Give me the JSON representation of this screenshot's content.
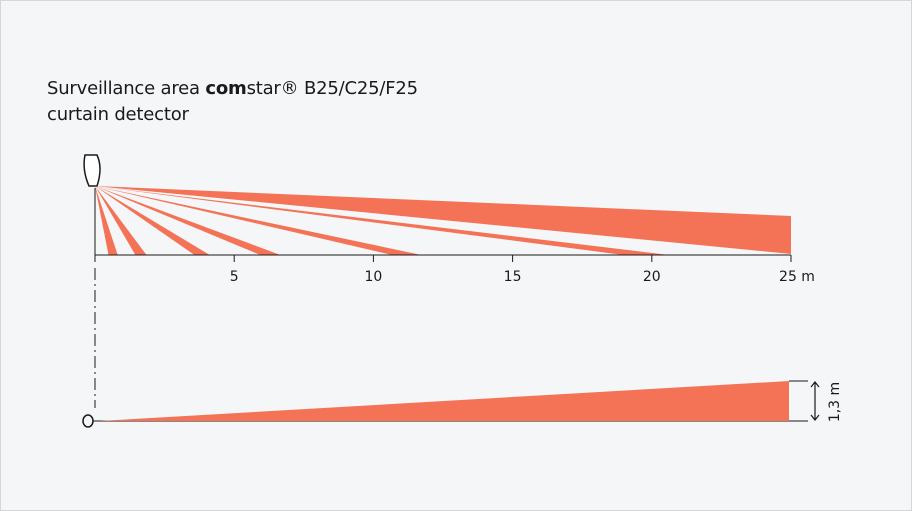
{
  "caption": {
    "prefix": "Surveillance area ",
    "brand_bold": "com",
    "brand_rest": "star®",
    "models": " B25/C25/F25",
    "line2": "curtain detector"
  },
  "top_view": {
    "axis_unit": "m",
    "axis_max": 25,
    "ticks": [
      {
        "value": 5,
        "label": "5"
      },
      {
        "value": 10,
        "label": "10"
      },
      {
        "value": 15,
        "label": "15"
      },
      {
        "value": 20,
        "label": "20"
      },
      {
        "value": 25,
        "label": "25 m"
      }
    ],
    "beam_ground_hits_m": [
      0.65,
      1.65,
      3.85,
      6.3,
      11.2,
      19.8
    ]
  },
  "side_view": {
    "height_label": "1,3 m",
    "height_m": 1.3,
    "range_m": 25
  },
  "colors": {
    "beam": "#f47356",
    "ink": "#1a1a1a",
    "background": "#f5f6f7",
    "border": "#d3d7da"
  }
}
